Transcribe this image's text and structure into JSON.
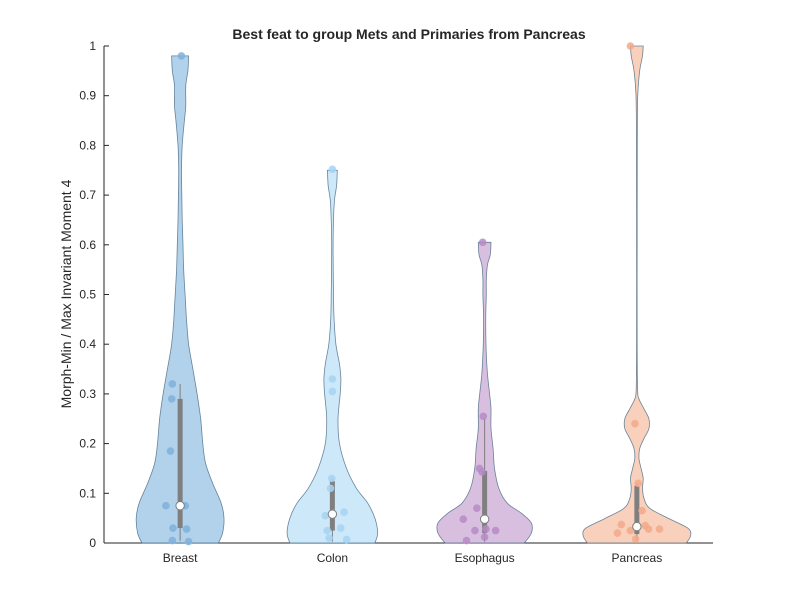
{
  "chart_data": {
    "type": "violin",
    "title": "Best feat to group Mets and Primaries from Pancreas",
    "xlabel": "",
    "ylabel": "Morph-Min / Max Invariant Moment 4",
    "ylim": [
      0,
      1
    ],
    "yticks": [
      0,
      0.1,
      0.2,
      0.3,
      0.4,
      0.5,
      0.6,
      0.7,
      0.8,
      0.9,
      1
    ],
    "ytick_labels": [
      "0",
      "0.1",
      "0.2",
      "0.3",
      "0.4",
      "0.5",
      "0.6",
      "0.7",
      "0.8",
      "0.9",
      "1"
    ],
    "grid": false,
    "categories": [
      "Breast",
      "Colon",
      "Esophagus",
      "Pancreas"
    ],
    "series": [
      {
        "category": "Breast",
        "color": "#a8cde8",
        "edge_color": "#4a6a85",
        "dot_color": "#7fb1dc",
        "min": 0.0,
        "max": 0.98,
        "median": 0.075,
        "q1": 0.03,
        "q3": 0.29,
        "whisker": [
          0.005,
          0.32
        ],
        "density": [
          [
            0.0,
            0.27
          ],
          [
            0.02,
            0.3
          ],
          [
            0.05,
            0.31
          ],
          [
            0.08,
            0.29
          ],
          [
            0.12,
            0.23
          ],
          [
            0.16,
            0.18
          ],
          [
            0.2,
            0.16
          ],
          [
            0.25,
            0.145
          ],
          [
            0.3,
            0.12
          ],
          [
            0.35,
            0.09
          ],
          [
            0.4,
            0.06
          ],
          [
            0.45,
            0.045
          ],
          [
            0.5,
            0.035
          ],
          [
            0.55,
            0.025
          ],
          [
            0.6,
            0.02
          ],
          [
            0.65,
            0.015
          ],
          [
            0.7,
            0.012
          ],
          [
            0.75,
            0.01
          ],
          [
            0.8,
            0.015
          ],
          [
            0.85,
            0.03
          ],
          [
            0.88,
            0.04
          ],
          [
            0.92,
            0.04
          ],
          [
            0.95,
            0.055
          ],
          [
            0.98,
            0.06
          ]
        ],
        "points": [
          [
            -0.22,
            0.075
          ],
          [
            -0.15,
            0.185
          ],
          [
            -0.12,
            0.32
          ],
          [
            -0.13,
            0.29
          ],
          [
            -0.11,
            0.03
          ],
          [
            -0.12,
            0.005
          ],
          [
            0.08,
            0.075
          ],
          [
            0.1,
            0.028
          ],
          [
            0.13,
            0.003
          ],
          [
            0.02,
            0.98
          ]
        ]
      },
      {
        "category": "Colon",
        "color": "#c6e6f8",
        "edge_color": "#4a6a85",
        "dot_color": "#a4d4f2",
        "min": 0.0,
        "max": 0.752,
        "median": 0.058,
        "q1": 0.025,
        "q3": 0.125,
        "whisker": [
          0.003,
          0.13
        ],
        "density": [
          [
            0.0,
            0.3
          ],
          [
            0.02,
            0.32
          ],
          [
            0.05,
            0.3
          ],
          [
            0.08,
            0.25
          ],
          [
            0.11,
            0.17
          ],
          [
            0.15,
            0.1
          ],
          [
            0.2,
            0.05
          ],
          [
            0.25,
            0.04
          ],
          [
            0.3,
            0.055
          ],
          [
            0.33,
            0.06
          ],
          [
            0.36,
            0.05
          ],
          [
            0.4,
            0.025
          ],
          [
            0.45,
            0.012
          ],
          [
            0.5,
            0.008
          ],
          [
            0.55,
            0.006
          ],
          [
            0.6,
            0.005
          ],
          [
            0.65,
            0.008
          ],
          [
            0.69,
            0.015
          ],
          [
            0.72,
            0.03
          ],
          [
            0.75,
            0.035
          ]
        ],
        "points": [
          [
            -0.11,
            0.055
          ],
          [
            -0.08,
            0.025
          ],
          [
            -0.05,
            0.01
          ],
          [
            -0.03,
            0.11
          ],
          [
            0.0,
            0.33
          ],
          [
            -0.01,
            0.13
          ],
          [
            0.0,
            0.305
          ],
          [
            0.01,
            0.06
          ],
          [
            0.13,
            0.03
          ],
          [
            0.18,
            0.062
          ],
          [
            0.22,
            0.007
          ],
          [
            0.0,
            0.752
          ]
        ]
      },
      {
        "category": "Esophagus",
        "color": "#d4b8dc",
        "edge_color": "#4a6a85",
        "dot_color": "#b68ac6",
        "min": 0.0,
        "max": 0.605,
        "median": 0.048,
        "q1": 0.02,
        "q3": 0.145,
        "whisker": [
          0.003,
          0.25
        ],
        "density": [
          [
            0.0,
            0.28
          ],
          [
            0.02,
            0.33
          ],
          [
            0.04,
            0.33
          ],
          [
            0.06,
            0.26
          ],
          [
            0.08,
            0.16
          ],
          [
            0.11,
            0.1
          ],
          [
            0.15,
            0.07
          ],
          [
            0.19,
            0.06
          ],
          [
            0.23,
            0.045
          ],
          [
            0.27,
            0.045
          ],
          [
            0.3,
            0.035
          ],
          [
            0.34,
            0.02
          ],
          [
            0.38,
            0.012
          ],
          [
            0.42,
            0.008
          ],
          [
            0.46,
            0.008
          ],
          [
            0.5,
            0.012
          ],
          [
            0.53,
            0.012
          ],
          [
            0.56,
            0.02
          ],
          [
            0.58,
            0.04
          ],
          [
            0.605,
            0.045
          ]
        ],
        "points": [
          [
            -0.33,
            0.048
          ],
          [
            -0.28,
            0.005
          ],
          [
            -0.15,
            0.025
          ],
          [
            -0.12,
            0.07
          ],
          [
            -0.08,
            0.15
          ],
          [
            -0.04,
            0.143
          ],
          [
            -0.02,
            0.255
          ],
          [
            0.02,
            0.028
          ],
          [
            0.0,
            0.012
          ],
          [
            0.17,
            0.025
          ],
          [
            -0.03,
            0.605
          ]
        ]
      },
      {
        "category": "Pancreas",
        "color": "#f8cbb4",
        "edge_color": "#4a6a85",
        "dot_color": "#f2a98a",
        "min": 0.0,
        "max": 1.0,
        "median": 0.033,
        "q1": 0.018,
        "q3": 0.115,
        "whisker": [
          0.005,
          0.12
        ],
        "density": [
          [
            0.0,
            0.35
          ],
          [
            0.015,
            0.38
          ],
          [
            0.03,
            0.36
          ],
          [
            0.05,
            0.22
          ],
          [
            0.07,
            0.09
          ],
          [
            0.09,
            0.05
          ],
          [
            0.11,
            0.04
          ],
          [
            0.13,
            0.045
          ],
          [
            0.15,
            0.03
          ],
          [
            0.17,
            0.015
          ],
          [
            0.19,
            0.02
          ],
          [
            0.21,
            0.05
          ],
          [
            0.23,
            0.085
          ],
          [
            0.25,
            0.085
          ],
          [
            0.27,
            0.05
          ],
          [
            0.29,
            0.015
          ],
          [
            0.31,
            0.005
          ],
          [
            0.4,
            0.002
          ],
          [
            0.6,
            0.002
          ],
          [
            0.8,
            0.003
          ],
          [
            0.9,
            0.006
          ],
          [
            0.95,
            0.02
          ],
          [
            0.98,
            0.04
          ],
          [
            1.0,
            0.045
          ]
        ],
        "points": [
          [
            -0.3,
            0.02
          ],
          [
            -0.24,
            0.037
          ],
          [
            -0.1,
            0.025
          ],
          [
            -0.02,
            0.008
          ],
          [
            0.02,
            0.12
          ],
          [
            0.08,
            0.065
          ],
          [
            0.13,
            0.035
          ],
          [
            0.18,
            0.028
          ],
          [
            0.35,
            0.028
          ],
          [
            -0.03,
            0.24
          ],
          [
            -0.1,
            1.0
          ]
        ]
      }
    ]
  }
}
